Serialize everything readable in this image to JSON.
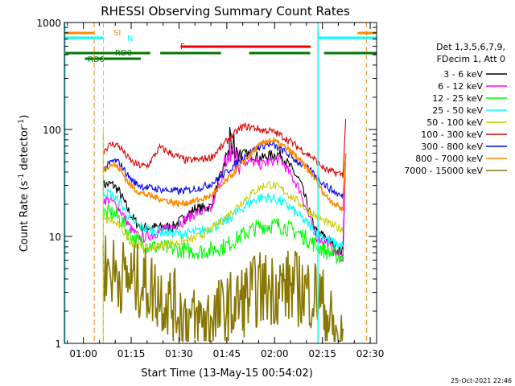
{
  "chart_data": {
    "type": "line",
    "title": "RHESSI Observing Summary Count Rates",
    "xlabel": "Start Time (13-May-15 00:54:02)",
    "ylabel_main": "Count Rate (s",
    "ylabel_sup": "-1",
    "ylabel_mid": " detector",
    "ylabel_sup2": "-1",
    "ylabel_end": ")",
    "yscale": "log",
    "ylim": [
      1,
      1000
    ],
    "xlim_minutes": [
      54.03,
      152.0
    ],
    "y_ticks": [
      {
        "value": 1,
        "label": "1"
      },
      {
        "value": 10,
        "label": "10"
      },
      {
        "value": 100,
        "label": "100"
      },
      {
        "value": 1000,
        "label": "1000"
      }
    ],
    "x_ticks": [
      {
        "minute": 60,
        "label": "01:00"
      },
      {
        "minute": 75,
        "label": "01:15"
      },
      {
        "minute": 90,
        "label": "01:30"
      },
      {
        "minute": 105,
        "label": "01:45"
      },
      {
        "minute": 120,
        "label": "02:00"
      },
      {
        "minute": 135,
        "label": "02:15"
      },
      {
        "minute": 150,
        "label": "02:30"
      }
    ],
    "legend_header": [
      "Det 1,3,5,6,7,9,",
      "FDecim 1, Att 0"
    ],
    "series": [
      {
        "name": "3 - 6 keV",
        "color": "#000000"
      },
      {
        "name": "6 - 12 keV",
        "color": "#ff00ff"
      },
      {
        "name": "12 - 25 keV",
        "color": "#00ff00"
      },
      {
        "name": "25 - 50 keV",
        "color": "#00ffff"
      },
      {
        "name": "50 - 100 keV",
        "color": "#cccc00"
      },
      {
        "name": "100 - 300 keV",
        "color": "#dd0000"
      },
      {
        "name": "300 - 800 keV",
        "color": "#0000ee"
      },
      {
        "name": "800 - 7000 keV",
        "color": "#ff8800"
      },
      {
        "name": "7000 - 15000 keV",
        "color": "#887700"
      }
    ],
    "flags": [
      {
        "label": "SI",
        "color": "#ff8800"
      },
      {
        "label": "N",
        "color": "#00ffff"
      },
      {
        "label": "F",
        "color": "#ee0000"
      },
      {
        "label": "RD0",
        "color": "#007700"
      },
      {
        "label": "RD6",
        "color": "#007700"
      }
    ],
    "timestamp": "25-Oct-2021 22:46"
  }
}
